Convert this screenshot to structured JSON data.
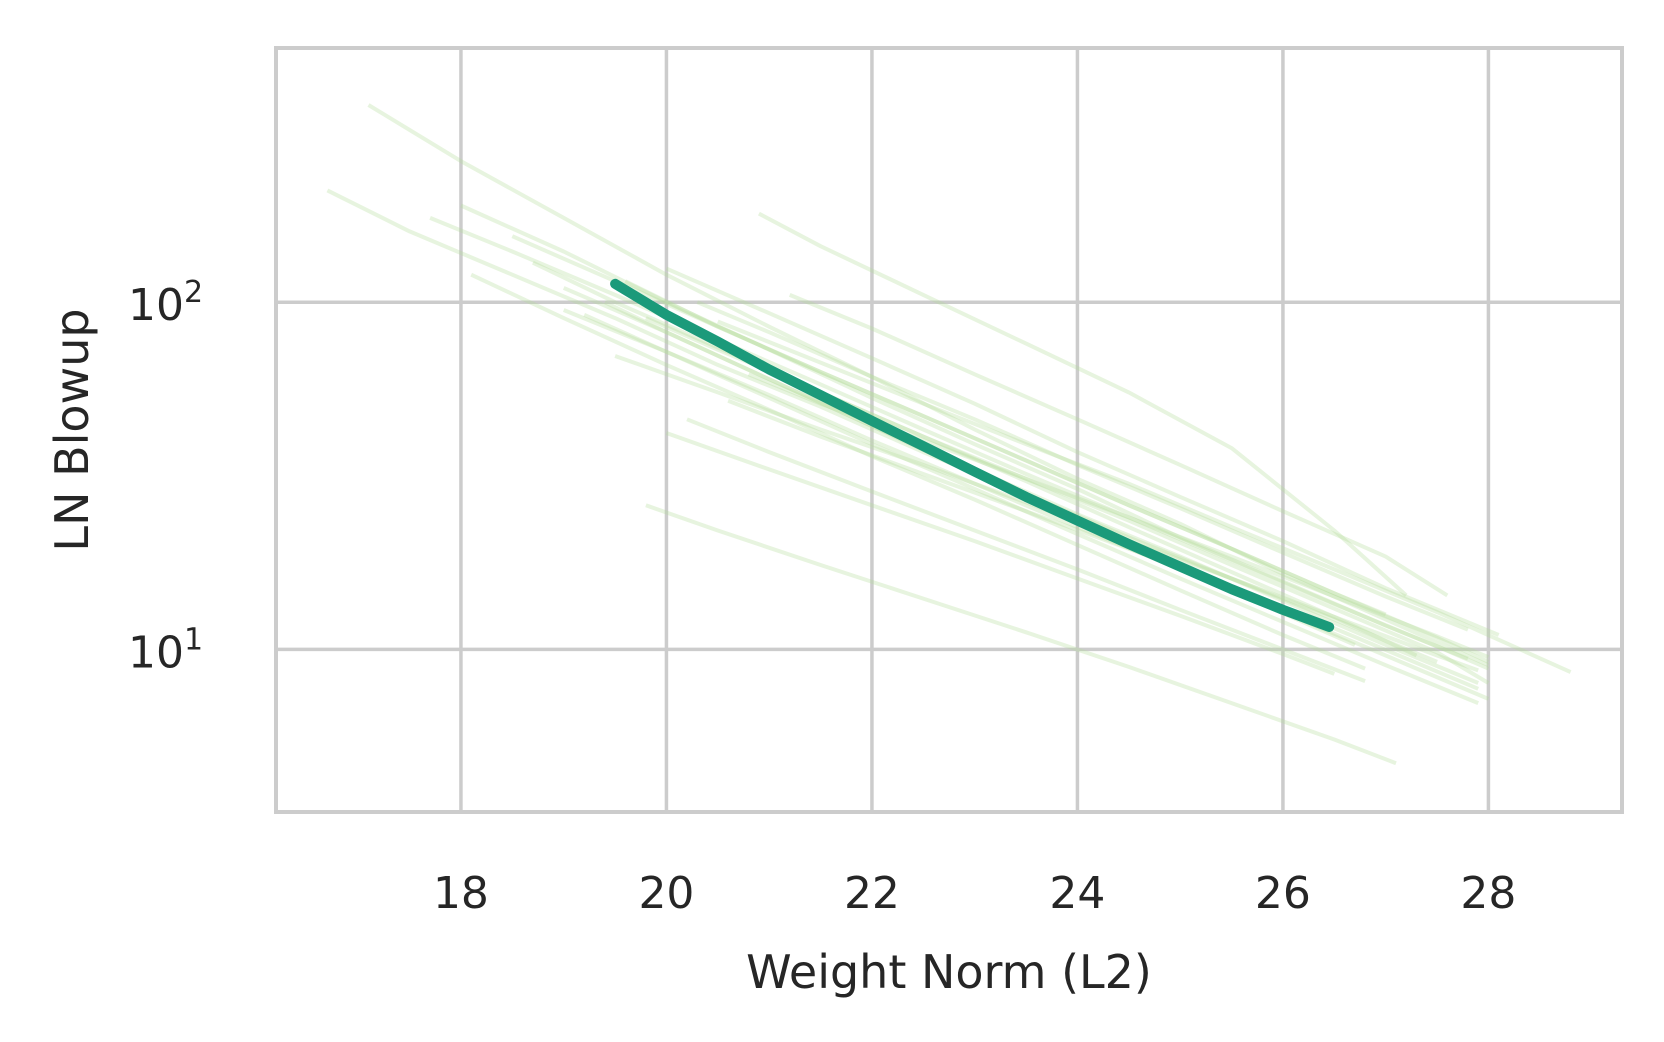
{
  "chart_data": {
    "type": "line",
    "xlabel": "Weight Norm (L2)",
    "ylabel": "LN Blowup",
    "yscale": "log",
    "xlim": [
      16.2,
      29.3
    ],
    "ylim": [
      3.4,
      540
    ],
    "x_ticks": [
      18,
      20,
      22,
      24,
      26,
      28
    ],
    "x_tick_labels": [
      "18",
      "20",
      "22",
      "24",
      "26",
      "28"
    ],
    "y_ticks": [
      {
        "value": 10,
        "base": "10",
        "exp": "1"
      },
      {
        "value": 100,
        "base": "10",
        "exp": "2"
      }
    ],
    "grid": true,
    "colors": {
      "main": "#1b9a7a",
      "background_runs": "#b5dd9c",
      "grid": "#cccccc",
      "frame": "#cccccc"
    },
    "series": [
      {
        "role": "main",
        "x": [
          19.5,
          20.0,
          20.5,
          21.0,
          21.5,
          22.0,
          22.5,
          23.0,
          23.5,
          24.0,
          24.5,
          25.0,
          25.5,
          26.0,
          26.45
        ],
        "y": [
          113,
          92,
          77,
          64,
          54,
          45.5,
          38.5,
          32.5,
          27.5,
          23.5,
          20.1,
          17.3,
          14.9,
          13.0,
          11.6
        ]
      },
      {
        "role": "background",
        "x": [
          17.1,
          18.0,
          19.0,
          20.0,
          21.0,
          22.0,
          23.0,
          24.0,
          25.0,
          26.0,
          27.0,
          28.0
        ],
        "y": [
          370,
          255,
          175,
          120,
          85,
          61,
          43,
          31,
          23,
          16.5,
          12.2,
          9.0
        ]
      },
      {
        "role": "background",
        "x": [
          16.7,
          17.5,
          18.5,
          19.5,
          20.5,
          21.5,
          22.5,
          23.5,
          24.5,
          25.5,
          26.5,
          27.5
        ],
        "y": [
          210,
          160,
          120,
          90,
          66,
          50,
          37,
          28,
          21,
          16,
          12.2,
          9.2
        ]
      },
      {
        "role": "background",
        "x": [
          17.7,
          18.5,
          19.5,
          20.5,
          21.5,
          22.5,
          23.5,
          24.5,
          25.5,
          26.5,
          27.5,
          28.0
        ],
        "y": [
          175,
          140,
          105,
          78,
          58,
          43,
          32,
          24,
          18,
          13.5,
          10.2,
          8.8
        ]
      },
      {
        "role": "background",
        "x": [
          18.0,
          19.0,
          20.0,
          21.0,
          22.0,
          23.0,
          24.0,
          25.0,
          26.0,
          27.0,
          27.8
        ],
        "y": [
          190,
          140,
          100,
          73,
          53,
          39,
          29,
          21,
          15.7,
          11.7,
          9.4
        ]
      },
      {
        "role": "background",
        "x": [
          18.1,
          19.0,
          20.0,
          21.0,
          22.0,
          23.0,
          24.0,
          25.0,
          26.0,
          26.8
        ],
        "y": [
          120,
          90,
          66,
          49,
          36,
          27,
          20,
          14.8,
          11.0,
          8.8
        ]
      },
      {
        "role": "background",
        "x": [
          18.5,
          19.5,
          20.5,
          21.5,
          22.5,
          23.5,
          24.5,
          25.5,
          26.5,
          27.5,
          28.0
        ],
        "y": [
          155,
          115,
          85,
          63,
          47,
          35,
          26,
          19.5,
          14.5,
          10.8,
          9.2
        ]
      },
      {
        "role": "background",
        "x": [
          18.7,
          19.5,
          20.5,
          21.5,
          22.5,
          23.5,
          24.5,
          25.5,
          26.5,
          27.5,
          28.0
        ],
        "y": [
          130,
          100,
          74,
          55,
          41,
          31,
          23.5,
          17.5,
          13.1,
          9.8,
          8.0
        ]
      },
      {
        "role": "background",
        "x": [
          19.0,
          20.0,
          21.0,
          22.0,
          23.0,
          24.0,
          25.0,
          26.0,
          27.0,
          27.9
        ],
        "y": [
          110,
          82,
          60,
          44,
          33,
          24.5,
          18.5,
          13.8,
          10.3,
          8.0
        ]
      },
      {
        "role": "background",
        "x": [
          19.0,
          20.0,
          21.0,
          22.0,
          23.0,
          24.0,
          25.0,
          26.0,
          27.0,
          27.9
        ],
        "y": [
          95,
          72,
          53,
          39,
          29,
          21.5,
          16,
          12,
          9,
          7.0
        ]
      },
      {
        "role": "background",
        "x": [
          19.2,
          20.0,
          21.0,
          22.0,
          23.0,
          24.0,
          25.0,
          26.0,
          27.0,
          28.0
        ],
        "y": [
          92,
          72,
          54,
          40,
          30,
          22.5,
          17,
          12.8,
          9.6,
          7.2
        ]
      },
      {
        "role": "background",
        "x": [
          19.4,
          20.0,
          21.0,
          22.0,
          23.0,
          24.0,
          25.0,
          26.0,
          26.7
        ],
        "y": [
          100,
          82,
          60,
          44,
          32,
          23.5,
          17.3,
          12.7,
          10.3
        ]
      },
      {
        "role": "background",
        "x": [
          19.6,
          20.5,
          21.5,
          22.5,
          23.5,
          24.5,
          25.5,
          26.5,
          27.0
        ],
        "y": [
          115,
          85,
          63,
          47,
          35,
          26,
          19.5,
          14.5,
          12.6
        ]
      },
      {
        "role": "background",
        "x": [
          19.8,
          20.5,
          21.5,
          22.5,
          23.5,
          24.5,
          25.5,
          26.5,
          27.3
        ],
        "y": [
          90,
          73,
          55,
          41,
          30.5,
          22.5,
          16.7,
          12.4,
          9.6
        ]
      },
      {
        "role": "background",
        "x": [
          20.0,
          21.0,
          22.0,
          23.0,
          24.0,
          25.0,
          26.0,
          27.0,
          28.1
        ],
        "y": [
          125,
          93,
          69,
          51,
          37,
          27.5,
          20.5,
          15,
          11
        ]
      },
      {
        "role": "background",
        "x": [
          20.3,
          21.0,
          22.0,
          23.0,
          24.0,
          25.0,
          26.0,
          27.0,
          27.8
        ],
        "y": [
          100,
          82,
          61,
          46,
          34,
          25.5,
          19,
          14.2,
          11.4
        ]
      },
      {
        "role": "background",
        "x": [
          20.5,
          21.5,
          22.5,
          23.5,
          24.5,
          25.5,
          26.5,
          27.5,
          28.8
        ],
        "y": [
          88,
          67,
          51,
          39,
          30,
          22.5,
          17,
          12.8,
          8.6
        ]
      },
      {
        "role": "background",
        "x": [
          20.9,
          21.5,
          22.5,
          23.5,
          24.5,
          25.5,
          26.5,
          27.2
        ],
        "y": [
          180,
          145,
          105,
          76,
          55,
          38,
          22,
          14.3
        ]
      },
      {
        "role": "background",
        "x": [
          21.2,
          22.0,
          23.0,
          24.0,
          25.0,
          26.0,
          27.0,
          27.6
        ],
        "y": [
          105,
          84,
          62,
          46,
          34,
          25,
          18.5,
          14.3
        ]
      },
      {
        "role": "background",
        "x": [
          19.8,
          20.5,
          21.5,
          22.5,
          23.5,
          24.5,
          25.5,
          26.5,
          27.1
        ],
        "y": [
          26,
          22,
          17.5,
          14,
          11.2,
          8.9,
          7.0,
          5.5,
          4.7
        ]
      },
      {
        "role": "background",
        "x": [
          20.0,
          21.0,
          22.0,
          23.0,
          24.0,
          25.0,
          26.0,
          26.5
        ],
        "y": [
          42,
          33,
          26,
          20.5,
          16,
          12.5,
          9.7,
          8.5
        ]
      },
      {
        "role": "background",
        "x": [
          20.2,
          21.0,
          22.0,
          23.0,
          24.0,
          25.0,
          26.0,
          26.8
        ],
        "y": [
          46,
          37,
          28.5,
          22,
          17,
          13,
          10,
          8.1
        ]
      },
      {
        "role": "background",
        "x": [
          20.6,
          21.5,
          22.5,
          23.5,
          24.5,
          25.5,
          26.5,
          27.9
        ],
        "y": [
          52,
          41,
          32,
          25,
          19.5,
          15,
          11.5,
          7.7
        ]
      },
      {
        "role": "background",
        "x": [
          20.8,
          21.5,
          22.5,
          23.5,
          24.5,
          25.5,
          26.5,
          27.5,
          28.0
        ],
        "y": [
          62,
          51,
          40,
          31,
          24,
          18.5,
          14.2,
          10.9,
          9.5
        ]
      },
      {
        "role": "background",
        "x": [
          19.5,
          20.5,
          21.5,
          22.5,
          23.5,
          24.5,
          25.5,
          26.5,
          27.5,
          27.9
        ],
        "y": [
          70,
          55,
          43,
          34,
          26.5,
          20.5,
          16,
          12.4,
          9.6,
          8.7
        ]
      }
    ]
  }
}
